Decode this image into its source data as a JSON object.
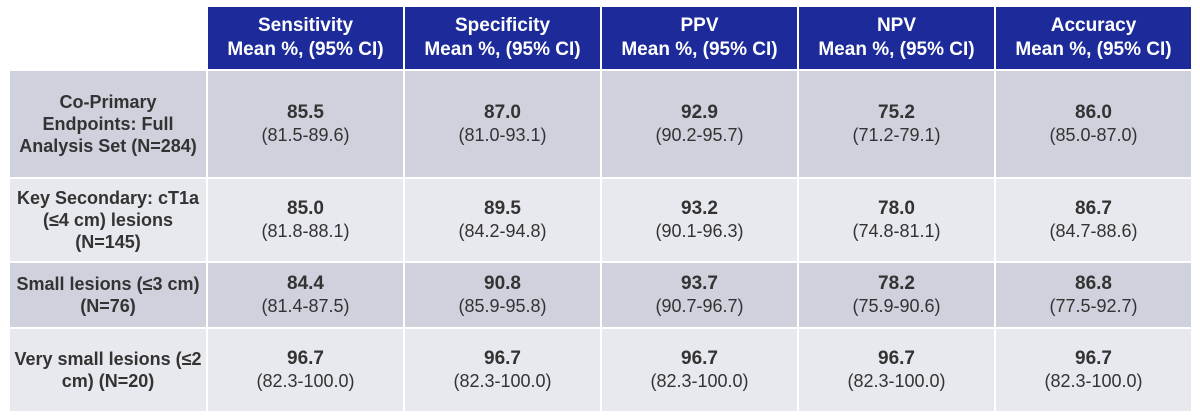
{
  "columns": [
    {
      "name": "Sensitivity",
      "subtitle": "Mean %, (95% CI)"
    },
    {
      "name": "Specificity",
      "subtitle": "Mean %, (95% CI)"
    },
    {
      "name": "PPV",
      "subtitle": "Mean %, (95% CI)"
    },
    {
      "name": "NPV",
      "subtitle": "Mean %, (95% CI)"
    },
    {
      "name": "Accuracy",
      "subtitle": "Mean %, (95% CI)"
    }
  ],
  "rows": [
    {
      "label": "Co-Primary Endpoints: Full Analysis Set (N=284)",
      "cells": [
        {
          "mean": "85.5",
          "ci": "(81.5-89.6)"
        },
        {
          "mean": "87.0",
          "ci": "(81.0-93.1)"
        },
        {
          "mean": "92.9",
          "ci": "(90.2-95.7)"
        },
        {
          "mean": "75.2",
          "ci": "(71.2-79.1)"
        },
        {
          "mean": "86.0",
          "ci": "(85.0-87.0)"
        }
      ]
    },
    {
      "label": "Key Secondary: cT1a (≤4 cm) lesions (N=145)",
      "cells": [
        {
          "mean": "85.0",
          "ci": "(81.8-88.1)"
        },
        {
          "mean": "89.5",
          "ci": "(84.2-94.8)"
        },
        {
          "mean": "93.2",
          "ci": "(90.1-96.3)"
        },
        {
          "mean": "78.0",
          "ci": "(74.8-81.1)"
        },
        {
          "mean": "86.7",
          "ci": "(84.7-88.6)"
        }
      ]
    },
    {
      "label": "Small lesions (≤3 cm) (N=76)",
      "cells": [
        {
          "mean": "84.4",
          "ci": "(81.4-87.5)"
        },
        {
          "mean": "90.8",
          "ci": "(85.9-95.8)"
        },
        {
          "mean": "93.7",
          "ci": "(90.7-96.7)"
        },
        {
          "mean": "78.2",
          "ci": "(75.9-90.6)"
        },
        {
          "mean": "86.8",
          "ci": "(77.5-92.7)"
        }
      ]
    },
    {
      "label": "Very small lesions (≤2 cm) (N=20)",
      "cells": [
        {
          "mean": "96.7",
          "ci": "(82.3-100.0)"
        },
        {
          "mean": "96.7",
          "ci": "(82.3-100.0)"
        },
        {
          "mean": "96.7",
          "ci": "(82.3-100.0)"
        },
        {
          "mean": "96.7",
          "ci": "(82.3-100.0)"
        },
        {
          "mean": "96.7",
          "ci": "(82.3-100.0)"
        }
      ]
    }
  ],
  "colors": {
    "header_bg": "#1c2a9a",
    "header_text": "#ffffff",
    "row_dark": "#cfd1dc",
    "row_light": "#e8e9ee",
    "body_text": "#333333"
  }
}
